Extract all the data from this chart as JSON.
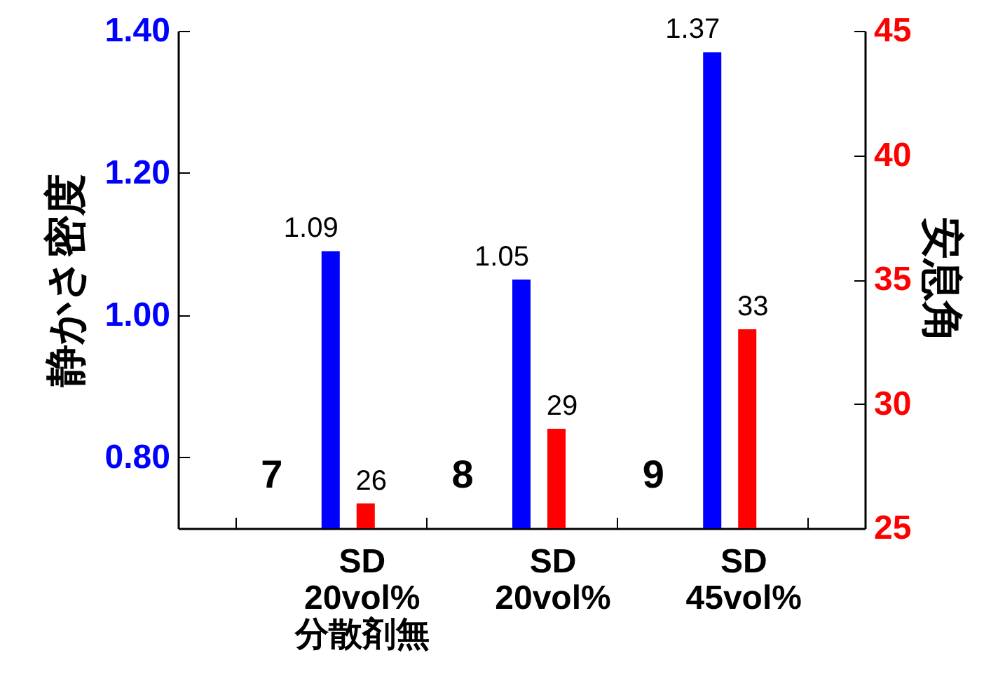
{
  "chart_data": {
    "type": "bar",
    "categories": [
      "SD\n20vol%\n分散剤無",
      "SD\n20vol%",
      "SD\n45vol%"
    ],
    "series": [
      {
        "color": "#0000ff",
        "values": [
          1.09,
          1.05,
          1.37
        ]
      },
      {
        "color": "#ff0000",
        "values": [
          26,
          29,
          33
        ],
        "axis": "y2"
      }
    ],
    "ylabel": "静かさ密度",
    "y2label": "安息角",
    "ylim": [
      0.7,
      1.4
    ],
    "yticks": [
      {
        "value": 0.8,
        "label": "0.80"
      },
      {
        "value": 1.0,
        "label": "1.00"
      },
      {
        "value": 1.2,
        "label": "1.20"
      },
      {
        "value": 1.4,
        "label": "1.40"
      }
    ],
    "y2lim": [
      25,
      45
    ],
    "y2ticks": [
      25,
      30,
      35,
      40,
      45
    ],
    "data_labels": true,
    "grid": false,
    "annotations": [
      "7",
      "8",
      "9"
    ]
  }
}
